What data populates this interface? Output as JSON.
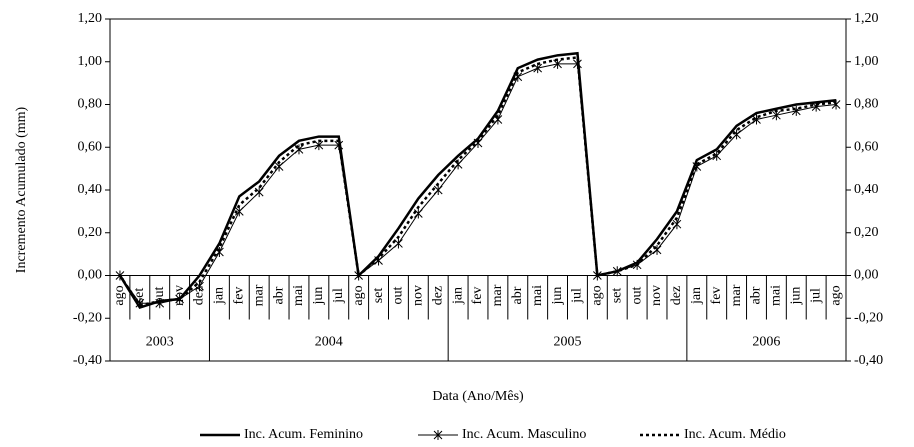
{
  "chart_data": {
    "type": "line",
    "y_label": "Incremento  Acumulado  (mm)",
    "x_label": "Data (Ano/Mês)",
    "categories": [
      "ago",
      "set",
      "out",
      "nov",
      "dez",
      "jan",
      "fev",
      "mar",
      "abr",
      "mai",
      "jun",
      "jul",
      "ago",
      "set",
      "out",
      "nov",
      "dez",
      "jan",
      "fev",
      "mar",
      "abr",
      "mai",
      "jun",
      "jul",
      "ago",
      "set",
      "out",
      "nov",
      "dez",
      "jan",
      "fev",
      "mar",
      "abr",
      "mai",
      "jun",
      "jul",
      "ago"
    ],
    "year_labels": [
      "2003",
      "2004",
      "2005",
      "2006"
    ],
    "series": [
      {
        "name": "Inc. Acum. Feminino",
        "color": "#000000",
        "line_style": "solid",
        "line_width": 2.5,
        "marker": "none",
        "values": [
          0.0,
          -0.15,
          -0.12,
          -0.11,
          0.0,
          0.15,
          0.37,
          0.44,
          0.56,
          0.63,
          0.65,
          0.65,
          0.0,
          0.09,
          0.22,
          0.36,
          0.47,
          0.56,
          0.64,
          0.77,
          0.97,
          1.01,
          1.03,
          1.04,
          0.0,
          0.02,
          0.06,
          0.17,
          0.3,
          0.54,
          0.59,
          0.7,
          0.76,
          0.78,
          0.8,
          0.81,
          0.82
        ]
      },
      {
        "name": "Inc. Acum. Masculino",
        "color": "#000000",
        "line_style": "solid",
        "line_width": 1,
        "marker": "asterisk",
        "values": [
          0.0,
          -0.13,
          -0.13,
          -0.11,
          -0.05,
          0.11,
          0.3,
          0.39,
          0.51,
          0.59,
          0.61,
          0.61,
          0.0,
          0.07,
          0.15,
          0.29,
          0.4,
          0.52,
          0.62,
          0.73,
          0.93,
          0.97,
          0.99,
          0.99,
          0.0,
          0.02,
          0.05,
          0.12,
          0.24,
          0.51,
          0.56,
          0.66,
          0.73,
          0.75,
          0.77,
          0.79,
          0.8
        ]
      },
      {
        "name": "Inc. Acum. Médio",
        "color": "#000000",
        "line_style": "dotted",
        "line_width": 2.5,
        "marker": "none",
        "values": [
          0.0,
          -0.14,
          -0.12,
          -0.11,
          -0.03,
          0.13,
          0.33,
          0.41,
          0.53,
          0.61,
          0.63,
          0.63,
          0.0,
          0.08,
          0.18,
          0.32,
          0.43,
          0.54,
          0.63,
          0.75,
          0.95,
          0.99,
          1.01,
          1.02,
          0.0,
          0.02,
          0.05,
          0.14,
          0.27,
          0.52,
          0.57,
          0.68,
          0.74,
          0.77,
          0.78,
          0.8,
          0.81
        ]
      }
    ],
    "ylim": [
      -0.4,
      1.2
    ],
    "yticks": [
      {
        "value": -0.4,
        "label": "-0,40"
      },
      {
        "value": -0.2,
        "label": "-0,20"
      },
      {
        "value": 0,
        "label": "0,00"
      },
      {
        "value": 0.2,
        "label": "0,20"
      },
      {
        "value": 0.4,
        "label": "0,40"
      },
      {
        "value": 0.6,
        "label": "0,60"
      },
      {
        "value": 0.8,
        "label": "0,80"
      },
      {
        "value": 1.0,
        "label": "1,00"
      },
      {
        "value": 1.2,
        "label": "1,20"
      }
    ],
    "y2lim": [
      -0.4,
      1.2
    ],
    "y2ticks": [
      {
        "value": -0.4,
        "label": "-0,40"
      },
      {
        "value": -0.2,
        "label": "-0,20"
      },
      {
        "value": 0,
        "label": "0,00"
      },
      {
        "value": 0.2,
        "label": "0,20"
      },
      {
        "value": 0.4,
        "label": "0,40"
      },
      {
        "value": 0.6,
        "label": "0,60"
      },
      {
        "value": 0.8,
        "label": "0,80"
      },
      {
        "value": 1.0,
        "label": "1,00"
      },
      {
        "value": 1.2,
        "label": "1,20"
      }
    ],
    "legend": "bottom"
  }
}
